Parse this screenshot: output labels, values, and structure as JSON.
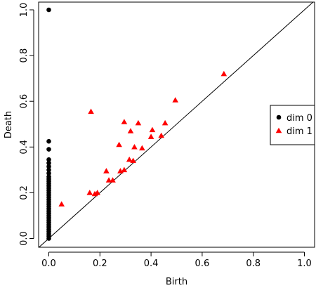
{
  "chart_data": {
    "type": "scatter",
    "title": "",
    "xlabel": "Birth",
    "ylabel": "Death",
    "xlim": [
      0,
      1
    ],
    "ylim": [
      0,
      1
    ],
    "grid": false,
    "diagonal_line": true,
    "legend_position": "right",
    "x_ticks": [
      "0.0",
      "0.2",
      "0.4",
      "0.6",
      "0.8",
      "1.0"
    ],
    "y_ticks": [
      "0.0",
      "0.2",
      "0.4",
      "0.6",
      "0.8",
      "1.0"
    ],
    "colors": {
      "dim0": "#000000",
      "dim1": "#ff0000",
      "axis": "#000000",
      "background": "#ffffff"
    },
    "series": [
      {
        "name": "dim 0",
        "marker": "circle",
        "points": [
          [
            0.0,
            1.0
          ],
          [
            0.0,
            0.425
          ],
          [
            0.0,
            0.39
          ],
          [
            0.0,
            0.345
          ],
          [
            0.0,
            0.33
          ],
          [
            0.0,
            0.315
          ],
          [
            0.0,
            0.3
          ],
          [
            0.0,
            0.285
          ],
          [
            0.0,
            0.27
          ],
          [
            0.0,
            0.26
          ],
          [
            0.0,
            0.25
          ],
          [
            0.0,
            0.24
          ],
          [
            0.0,
            0.23
          ],
          [
            0.0,
            0.22
          ],
          [
            0.0,
            0.21
          ],
          [
            0.0,
            0.2
          ],
          [
            0.0,
            0.19
          ],
          [
            0.0,
            0.18
          ],
          [
            0.0,
            0.17
          ],
          [
            0.0,
            0.16
          ],
          [
            0.0,
            0.15
          ],
          [
            0.0,
            0.14
          ],
          [
            0.0,
            0.13
          ],
          [
            0.0,
            0.12
          ],
          [
            0.0,
            0.11
          ],
          [
            0.0,
            0.1
          ],
          [
            0.0,
            0.09
          ],
          [
            0.0,
            0.08
          ],
          [
            0.0,
            0.07
          ],
          [
            0.0,
            0.06
          ],
          [
            0.0,
            0.05
          ],
          [
            0.0,
            0.04
          ],
          [
            0.0,
            0.03
          ],
          [
            0.0,
            0.02
          ],
          [
            0.0,
            0.01
          ],
          [
            0.0,
            0.0
          ]
        ]
      },
      {
        "name": "dim 1",
        "marker": "triangle",
        "points": [
          [
            0.05,
            0.15
          ],
          [
            0.16,
            0.2
          ],
          [
            0.165,
            0.555
          ],
          [
            0.18,
            0.195
          ],
          [
            0.19,
            0.2
          ],
          [
            0.225,
            0.295
          ],
          [
            0.235,
            0.255
          ],
          [
            0.25,
            0.255
          ],
          [
            0.275,
            0.41
          ],
          [
            0.28,
            0.295
          ],
          [
            0.295,
            0.3
          ],
          [
            0.295,
            0.51
          ],
          [
            0.315,
            0.345
          ],
          [
            0.32,
            0.47
          ],
          [
            0.33,
            0.34
          ],
          [
            0.335,
            0.4
          ],
          [
            0.35,
            0.505
          ],
          [
            0.365,
            0.395
          ],
          [
            0.4,
            0.445
          ],
          [
            0.405,
            0.475
          ],
          [
            0.44,
            0.45
          ],
          [
            0.455,
            0.505
          ],
          [
            0.495,
            0.605
          ],
          [
            0.685,
            0.72
          ]
        ]
      }
    ]
  }
}
